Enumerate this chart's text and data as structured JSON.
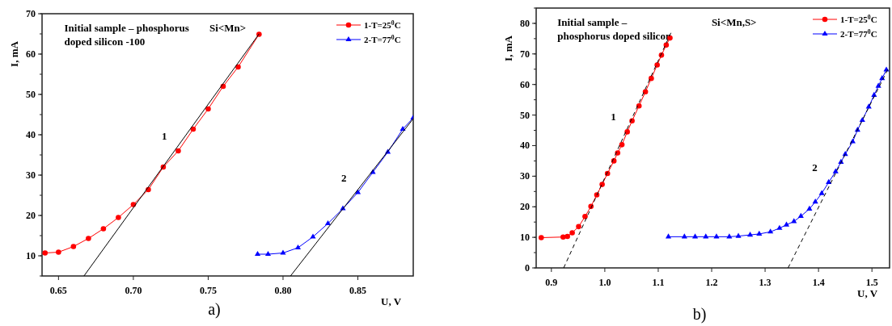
{
  "chart_data": [
    {
      "type": "line",
      "xlabel": "U, V",
      "ylabel": "I, mA",
      "xlim": [
        0.639,
        0.887
      ],
      "ylim": [
        5,
        70
      ],
      "xticks": [
        {
          "value": 0.65,
          "label": "0.65"
        },
        {
          "value": 0.7,
          "label": "0.70"
        },
        {
          "value": 0.75,
          "label": "0.75"
        },
        {
          "value": 0.8,
          "label": "0.80"
        },
        {
          "value": 0.85,
          "label": "0.85"
        }
      ],
      "yticks": [
        10,
        20,
        30,
        40,
        50,
        60,
        70
      ],
      "legend": "top right",
      "grid": false,
      "annotations": [
        "Initial sample – phosphorus\ndoped silicon -100",
        "Si<Mn>",
        "a)",
        "1",
        "2"
      ],
      "series": [
        {
          "name": "1-T=25$^{0}$C",
          "color": "#ff0000",
          "marker": "circle",
          "x": [
            0.641,
            0.65,
            0.66,
            0.67,
            0.68,
            0.69,
            0.7,
            0.71,
            0.72,
            0.73,
            0.74,
            0.75,
            0.76,
            0.77,
            0.784
          ],
          "values": [
            10.7,
            10.9,
            12.3,
            14.3,
            16.7,
            19.5,
            22.7,
            26.4,
            32,
            36,
            41.4,
            46.4,
            52,
            56.8,
            64.9
          ]
        },
        {
          "name": "2-T=77$^{0}$C",
          "color": "#0000ff",
          "marker": "triangle",
          "x": [
            0.783,
            0.79,
            0.8,
            0.81,
            0.82,
            0.83,
            0.84,
            0.85,
            0.86,
            0.87,
            0.88,
            0.887
          ],
          "values": [
            10.4,
            10.4,
            10.7,
            12,
            14.7,
            18,
            21.7,
            25.7,
            30.7,
            35.7,
            41.4,
            44.2
          ]
        },
        {
          "color": "#000000",
          "marker": "none",
          "line_style": "solid",
          "x": [
            0.667,
            0.784
          ],
          "values": [
            5,
            65
          ]
        },
        {
          "color": "#000000",
          "marker": "none",
          "line_style": "solid",
          "x": [
            0.805,
            0.887
          ],
          "values": [
            5,
            44
          ]
        }
      ]
    },
    {
      "type": "line",
      "xlabel": "U, V",
      "ylabel": "I, mA",
      "xlim": [
        0.8715,
        1.533
      ],
      "ylim": [
        0,
        85
      ],
      "xticks": [
        0.9,
        {
          "value": 1,
          "label": "1.0"
        },
        1.1,
        1.2,
        1.3,
        1.4,
        1.5
      ],
      "yticks": [
        0,
        10,
        20,
        30,
        40,
        50,
        60,
        70,
        80
      ],
      "legend": "top right",
      "grid": false,
      "annotations": [
        "Initial sample –\nphosphorus doped silicon",
        "Si<Mn,S>",
        "b)",
        "1",
        "2"
      ],
      "series": [
        {
          "name": "1-T=25$^{0}$C",
          "color": "#ff0000",
          "marker": "circle",
          "x": [
            0.881,
            0.922,
            0.93,
            0.939,
            0.951,
            0.963,
            0.974,
            0.985,
            0.995,
            1.005,
            1.017,
            1.024,
            1.032,
            1.042,
            1.051,
            1.064,
            1.076,
            1.087,
            1.098,
            1.106,
            1.115,
            1.122
          ],
          "values": [
            9.9,
            10.1,
            10.3,
            11.5,
            13.5,
            16.8,
            20.1,
            23.9,
            27.3,
            30.9,
            35,
            37.6,
            40.3,
            44.5,
            48.1,
            53,
            57.6,
            62,
            66.4,
            69.6,
            72.9,
            75.2
          ]
        },
        {
          "name": "2-T=77$^{0}$C",
          "color": "#0000ff",
          "marker": "triangle",
          "x": [
            1.119,
            1.149,
            1.169,
            1.189,
            1.209,
            1.233,
            1.25,
            1.272,
            1.289,
            1.31,
            1.327,
            1.34,
            1.354,
            1.367,
            1.383,
            1.394,
            1.406,
            1.419,
            1.432,
            1.442,
            1.45,
            1.464,
            1.473,
            1.482,
            1.494,
            1.504,
            1.512,
            1.519,
            1.527
          ],
          "values": [
            10.2,
            10.2,
            10.2,
            10.2,
            10.2,
            10.2,
            10.4,
            10.8,
            11.1,
            11.8,
            13,
            14.1,
            15.2,
            16.9,
            19.3,
            21.6,
            24.4,
            28,
            31.5,
            34.6,
            37.2,
            41.3,
            45.1,
            48.3,
            52.7,
            56.5,
            59.5,
            62,
            64.8
          ]
        },
        {
          "color": "#000000",
          "marker": "none",
          "line_style": "dashed",
          "x": [
            0.923,
            1.124
          ],
          "values": [
            0,
            77
          ]
        },
        {
          "color": "#000000",
          "marker": "none",
          "line_style": "dashed",
          "x": [
            1.343,
            1.53
          ],
          "values": [
            0,
            65
          ]
        }
      ]
    }
  ]
}
